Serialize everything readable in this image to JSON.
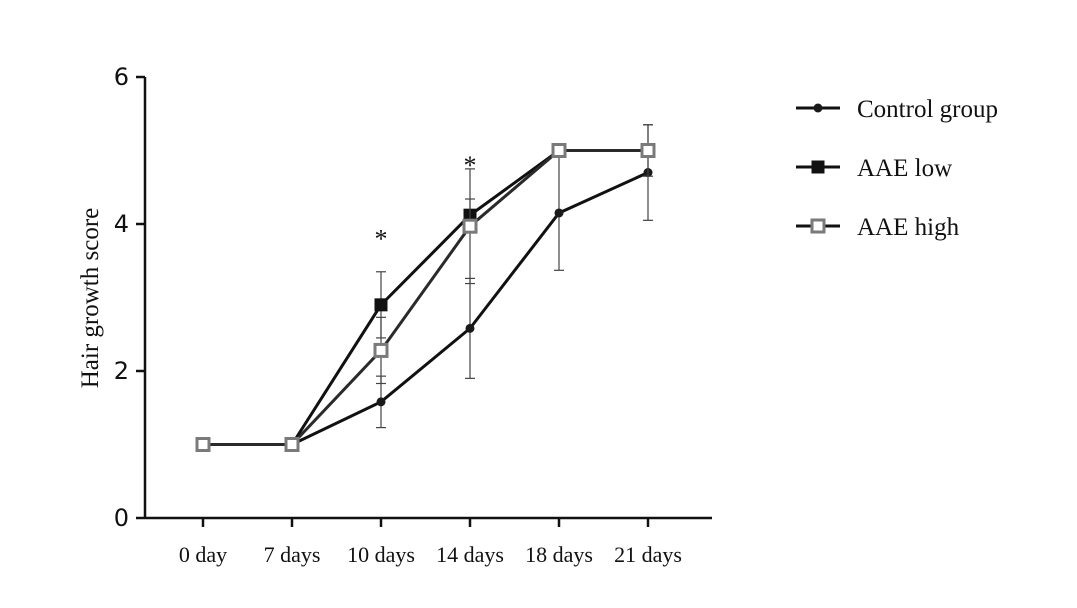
{
  "chart_data": {
    "type": "line",
    "title": "",
    "xlabel": "",
    "ylabel": "Hair growth score",
    "categories": [
      "0 day",
      "7 days",
      "10 days",
      "14 days",
      "18 days",
      "21 days"
    ],
    "y_ticks": [
      "0",
      "2",
      "4",
      "6"
    ],
    "ylim": [
      0,
      6
    ],
    "grid": false,
    "legend_position": "right",
    "series": [
      {
        "name": "Control group",
        "marker": "dot",
        "color": "#1a1a1a",
        "values": [
          1,
          1,
          1.58,
          2.58,
          4.15,
          4.7
        ],
        "errors": [
          0,
          0,
          0.35,
          0.68,
          0.78,
          0.65
        ]
      },
      {
        "name": "AAE low",
        "marker": "filled-square",
        "color": "#111111",
        "values": [
          1,
          1,
          2.9,
          4.12,
          5.0,
          5.0
        ],
        "errors": [
          0,
          0,
          0.45,
          0.22,
          0,
          0
        ]
      },
      {
        "name": "AAE high",
        "marker": "open-square",
        "color": "#7a7a7a",
        "values": [
          1,
          1,
          2.28,
          3.97,
          5.0,
          5.0
        ],
        "errors": [
          0,
          0,
          0.45,
          0.78,
          0,
          0.35
        ]
      }
    ],
    "annotations": [
      {
        "text": "*",
        "category_index": 2,
        "y": 3.9
      },
      {
        "text": "*",
        "category_index": 3,
        "y": 4.9
      }
    ]
  }
}
